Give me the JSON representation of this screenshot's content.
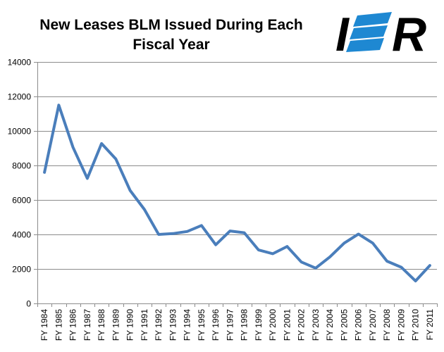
{
  "colors": {
    "series": "#4a7ebb",
    "logo_blue": "#1e88d2",
    "logo_black": "#000000"
  },
  "logo": {
    "text": "IER",
    "icon": "ier-logo"
  },
  "chart_data": {
    "type": "line",
    "title_lines": [
      "New Leases BLM Issued During Each",
      "Fiscal Year"
    ],
    "xlabel": "",
    "ylabel": "",
    "ylim": [
      0,
      14000
    ],
    "yticks": [
      0,
      2000,
      4000,
      6000,
      8000,
      10000,
      12000,
      14000
    ],
    "ytick_labels": [
      "0",
      "2000",
      "4000",
      "6000",
      "8000",
      "10000",
      "12000",
      "14000"
    ],
    "grid": true,
    "legend": "none",
    "categories": [
      "FY 1984",
      "FY 1985",
      "FY 1986",
      "FY 1987",
      "FY 1988",
      "FY 1989",
      "FY 1990",
      "FY 1991",
      "FY 1992",
      "FY 1993",
      "FY 1994",
      "FY 1995",
      "FY 1996",
      "FY 1997",
      "FY 1998",
      "FY 1999",
      "FY 2000",
      "FY 2001",
      "FY 2002",
      "FY 2003",
      "FY 2004",
      "FY 2005",
      "FY 2006",
      "FY 2007",
      "FY 2008",
      "FY 2009",
      "FY 2010",
      "FY 2011"
    ],
    "series": [
      {
        "values": [
          7600,
          11500,
          9050,
          7250,
          9270,
          8370,
          6550,
          5450,
          4000,
          4050,
          4170,
          4520,
          3400,
          4200,
          4100,
          3100,
          2880,
          3300,
          2400,
          2050,
          2700,
          3500,
          4020,
          3500,
          2450,
          2100,
          1300,
          2200
        ]
      }
    ]
  }
}
